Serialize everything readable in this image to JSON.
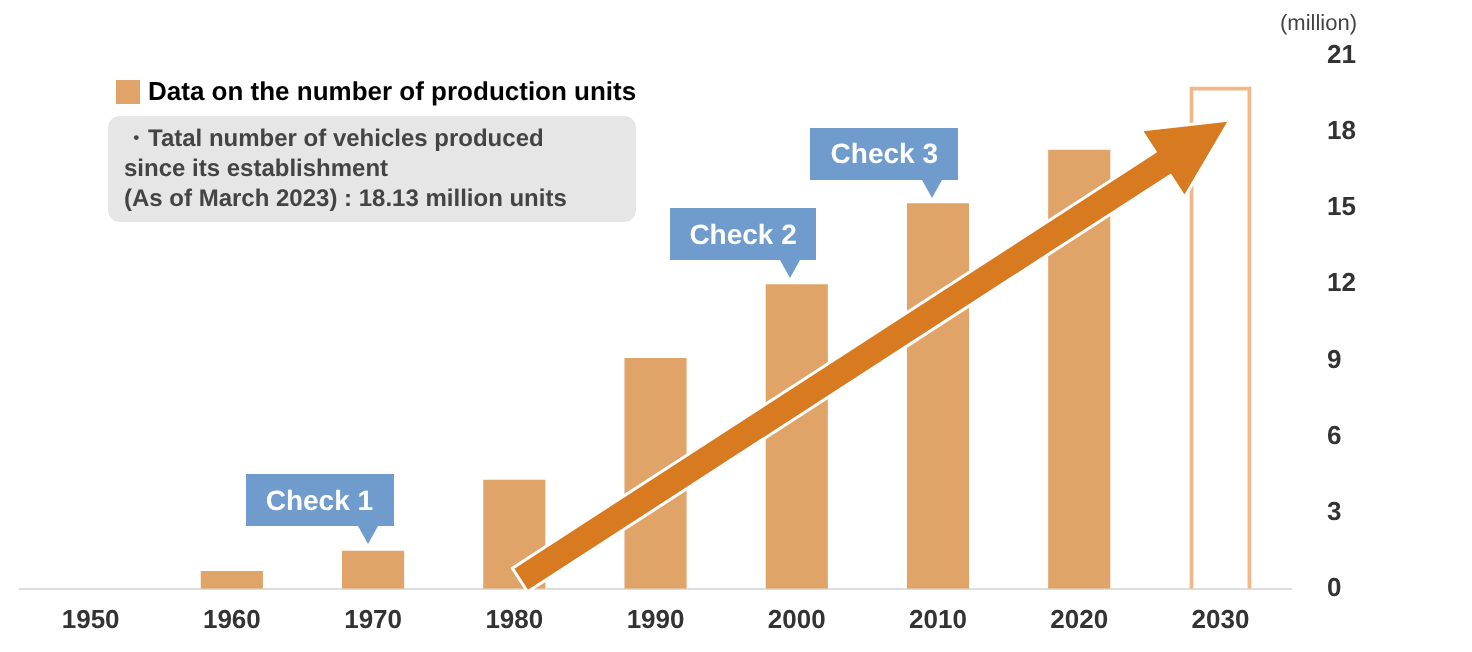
{
  "chart_data": {
    "type": "bar",
    "ylabel": "(million)",
    "categories": [
      "1950",
      "1960",
      "1970",
      "1980",
      "1990",
      "2000",
      "2010",
      "2020",
      "2030"
    ],
    "series": [
      {
        "name": "Data on the number of production units",
        "color": "#e0a468",
        "values": [
          0,
          0.7,
          1.5,
          4.3,
          9.1,
          12.0,
          15.2,
          17.3,
          null
        ]
      },
      {
        "color": "#f0b888",
        "line_style": "dashed",
        "values": [
          null,
          null,
          null,
          null,
          null,
          null,
          null,
          null,
          19.8
        ]
      }
    ],
    "ylim": [
      0,
      21
    ],
    "yticks": [
      0,
      3,
      6,
      9,
      12,
      15,
      18,
      21
    ],
    "grid": false,
    "legend": "top left",
    "annotations": [
      "・Tatal number of vehicles produced\nsince its establishment\n(As of March 2023)  : 18.13 million units",
      {
        "text": "Check 1",
        "x": "1970",
        "y": 1.5
      },
      {
        "text": "Check 2",
        "x": "2000",
        "y": 12.0
      },
      {
        "text": "Check 3",
        "x": "2010",
        "y": 15.2
      }
    ]
  }
}
